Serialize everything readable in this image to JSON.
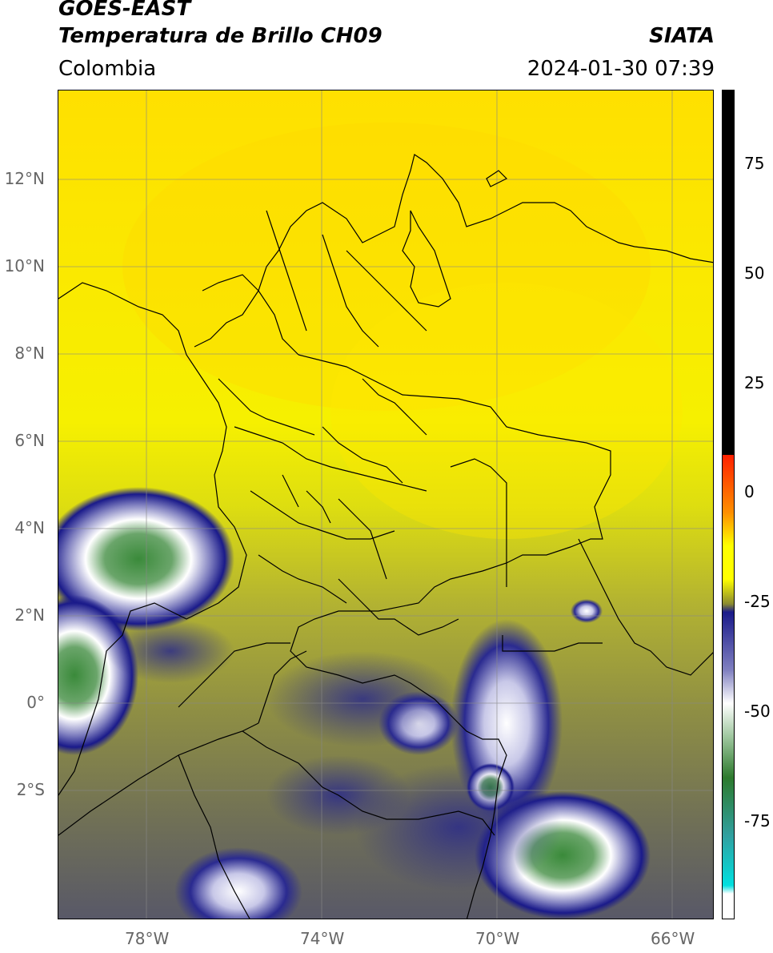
{
  "header": {
    "satellite": "GOES-EAST",
    "product": "Temperatura de Brillo CH09",
    "region": "Colombia",
    "agency": "SIATA",
    "datetime": "2024-01-30 07:39"
  },
  "map": {
    "lon_ticks": [
      "78°W",
      "74°W",
      "70°W",
      "66°W"
    ],
    "lat_ticks": [
      "12°N",
      "10°N",
      "8°N",
      "6°N",
      "4°N",
      "2°N",
      "0°",
      "2°S"
    ]
  },
  "colorbar": {
    "ticks": [
      "75",
      "50",
      "25",
      "0",
      "-25",
      "-50",
      "-75"
    ],
    "colors": {
      "warm_max": "#000000",
      "red": "#ff2000",
      "orange": "#ff9000",
      "yellow": "#ffff00",
      "olive": "#8a8a30",
      "dark_blue": "#1a1a8a",
      "white": "#ffffff",
      "green": "#2d7a2d",
      "cyan": "#00e0e0"
    }
  }
}
